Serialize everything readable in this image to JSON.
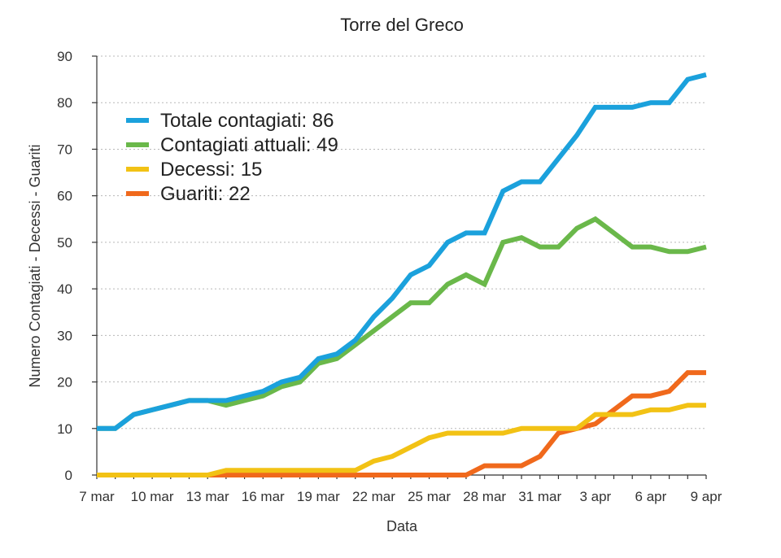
{
  "chart_data": {
    "type": "line",
    "title": "Torre del Greco",
    "xlabel": "Data",
    "ylabel": "Numero Contagiati - Decessi - Guariti",
    "ylim": [
      0,
      90
    ],
    "yticks": [
      0,
      10,
      20,
      30,
      40,
      50,
      60,
      70,
      80,
      90
    ],
    "grid": true,
    "legend_position": "top-left",
    "x": [
      "7 mar",
      "8 mar",
      "9 mar",
      "10 mar",
      "11 mar",
      "12 mar",
      "13 mar",
      "14 mar",
      "15 mar",
      "16 mar",
      "17 mar",
      "18 mar",
      "19 mar",
      "20 mar",
      "21 mar",
      "22 mar",
      "23 mar",
      "24 mar",
      "25 mar",
      "26 mar",
      "27 mar",
      "28 mar",
      "29 mar",
      "30 mar",
      "31 mar",
      "1 apr",
      "2 apr",
      "3 apr",
      "4 apr",
      "5 apr",
      "6 apr",
      "7 apr",
      "8 apr",
      "9 apr"
    ],
    "xtick_labels": [
      "7 mar",
      "10 mar",
      "13 mar",
      "16 mar",
      "19 mar",
      "22 mar",
      "25 mar",
      "28 mar",
      "31 mar",
      "3 apr",
      "6 apr",
      "9 apr"
    ],
    "series": [
      {
        "name": "Totale contagiati: 86",
        "color": "#1ba1dc",
        "values": [
          10,
          10,
          13,
          14,
          15,
          16,
          16,
          16,
          17,
          18,
          20,
          21,
          25,
          26,
          29,
          34,
          38,
          43,
          45,
          50,
          52,
          52,
          61,
          63,
          63,
          68,
          73,
          79,
          79,
          79,
          80,
          80,
          85,
          86
        ]
      },
      {
        "name": "Contagiati attuali: 49",
        "color": "#6ab84a",
        "values": [
          10,
          10,
          13,
          14,
          15,
          16,
          16,
          15,
          16,
          17,
          19,
          20,
          24,
          25,
          28,
          31,
          34,
          37,
          37,
          41,
          43,
          41,
          50,
          51,
          49,
          49,
          53,
          55,
          52,
          49,
          49,
          48,
          48,
          49
        ]
      },
      {
        "name": "Decessi: 15",
        "color": "#f2c215",
        "values": [
          0,
          0,
          0,
          0,
          0,
          0,
          0,
          1,
          1,
          1,
          1,
          1,
          1,
          1,
          1,
          3,
          4,
          6,
          8,
          9,
          9,
          9,
          9,
          10,
          10,
          10,
          10,
          13,
          13,
          13,
          14,
          14,
          15,
          15
        ]
      },
      {
        "name": "Guariti: 22",
        "color": "#f0691c",
        "values": [
          0,
          0,
          0,
          0,
          0,
          0,
          0,
          0,
          0,
          0,
          0,
          0,
          0,
          0,
          0,
          0,
          0,
          0,
          0,
          0,
          0,
          2,
          2,
          2,
          4,
          9,
          10,
          11,
          14,
          17,
          17,
          18,
          22,
          22
        ]
      }
    ]
  }
}
